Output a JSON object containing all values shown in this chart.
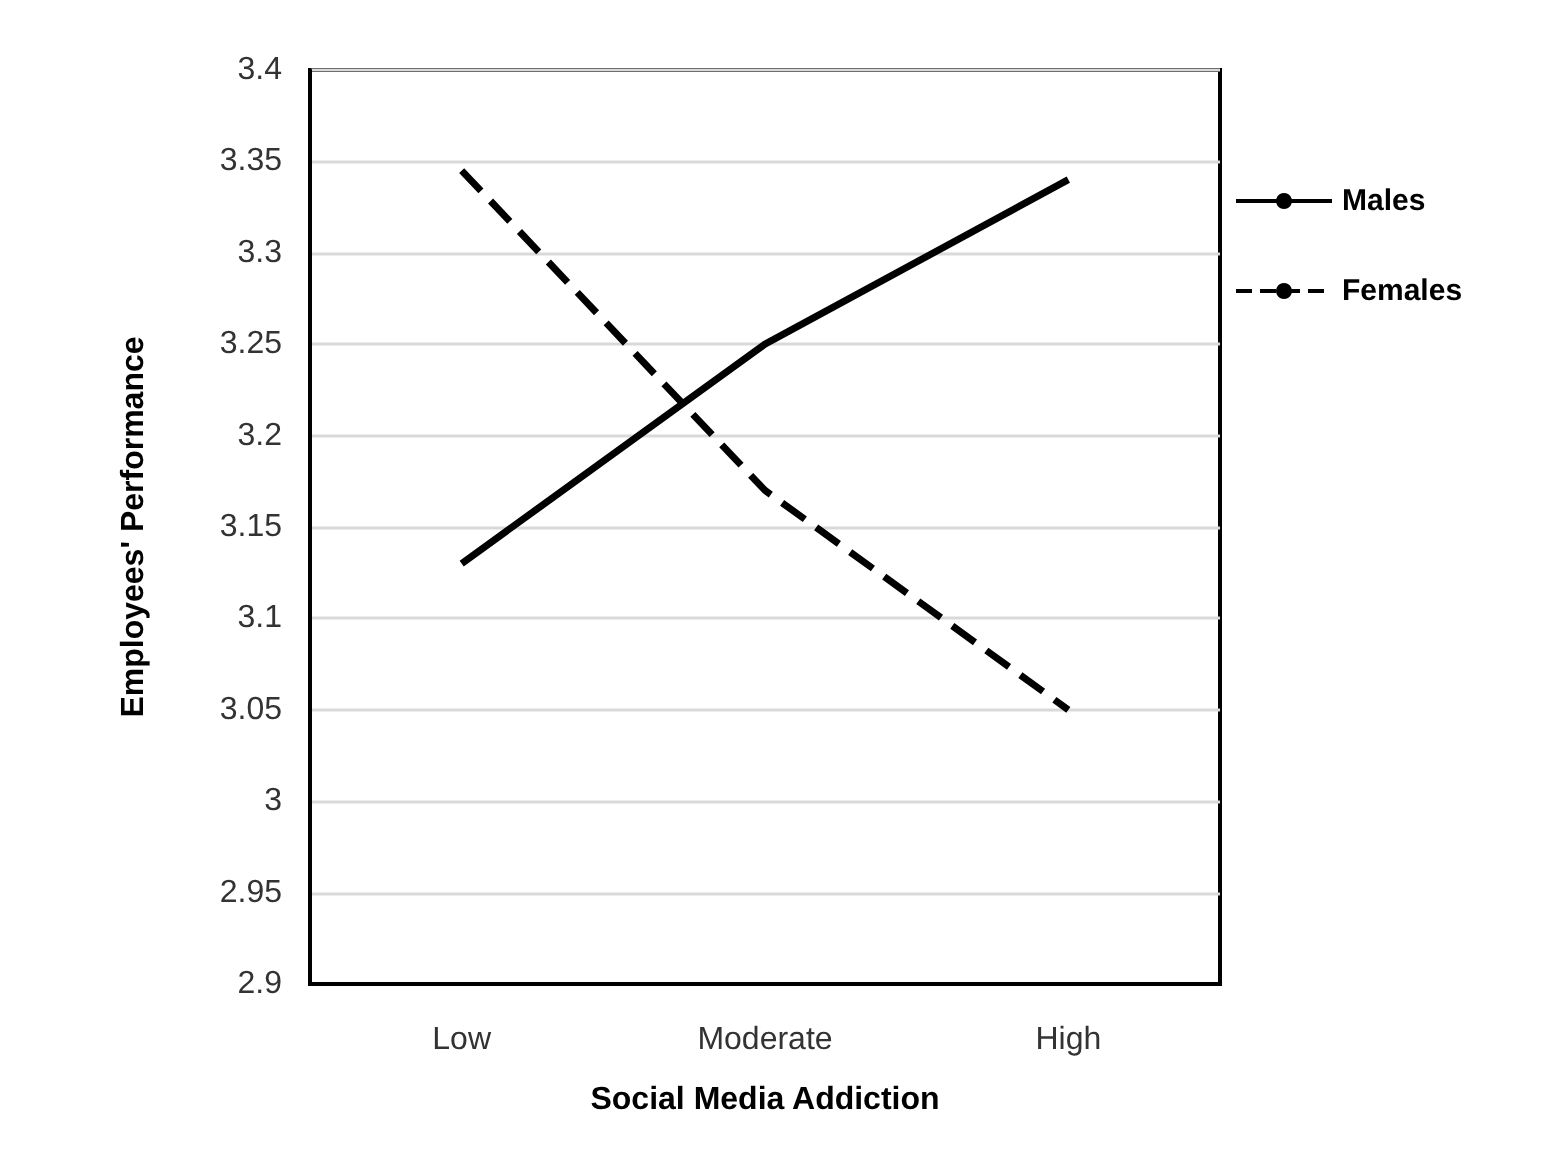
{
  "chart_data": {
    "type": "line",
    "xlabel": "Social Media Addiction",
    "ylabel": "Employees' Performance",
    "categories": [
      "Low",
      "Moderate",
      "High"
    ],
    "series": [
      {
        "name": "Males",
        "color": "#000000",
        "values": [
          3.13,
          3.25,
          3.34
        ],
        "line_style": "solid"
      },
      {
        "name": "Females",
        "color": "#000000",
        "values": [
          3.345,
          3.17,
          3.05
        ],
        "line_style": "dashed"
      }
    ],
    "ylim": [
      2.9,
      3.4
    ],
    "yticks": [
      2.9,
      2.95,
      3,
      3.05,
      3.1,
      3.15,
      3.2,
      3.25,
      3.3,
      3.35,
      3.4
    ],
    "grid": "y",
    "legend": "right",
    "marker": "none"
  }
}
